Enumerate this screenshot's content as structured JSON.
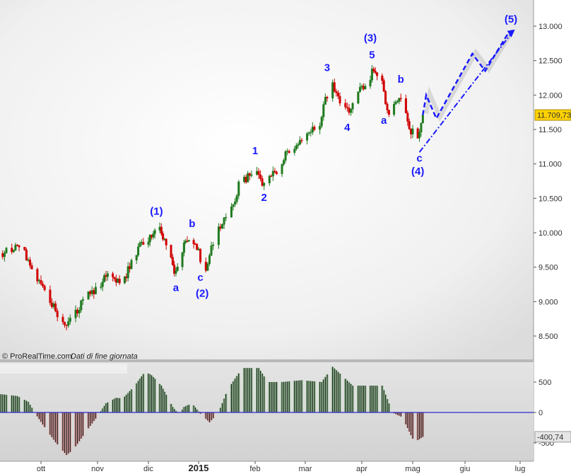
{
  "chart_data": [
    {
      "type": "candlestick",
      "title": "",
      "credit": "© ProRealTime.com",
      "credit_note": "Dati di fine giornata",
      "ylim": [
        8300,
        13300
      ],
      "y_ticks": [
        "13.000",
        "12.500",
        "12.000",
        "11.500",
        "11.000",
        "10.500",
        "10.000",
        "9.500",
        "9.000",
        "8.500"
      ],
      "y_tick_values": [
        13000,
        12500,
        12000,
        11500,
        11000,
        10500,
        10000,
        9500,
        9000,
        8500
      ],
      "last_price_label": "11.709,73",
      "last_price": 11709.73,
      "grid": false,
      "colors": {
        "up": "#1f7a1f",
        "down": "#d00000",
        "wave_labels": "#1a1aff",
        "projection": "#1a1aff",
        "last_price_badge": "#ffd200"
      },
      "close_path": [
        [
          "2014-09-10",
          9700
        ],
        [
          "2014-09-19",
          9830
        ],
        [
          "2014-09-26",
          9520
        ],
        [
          "2014-10-03",
          9160
        ],
        [
          "2014-10-09",
          8850
        ],
        [
          "2014-10-14",
          8600
        ],
        [
          "2014-10-17",
          8750
        ],
        [
          "2014-10-24",
          9000
        ],
        [
          "2014-10-31",
          9200
        ],
        [
          "2014-11-06",
          9360
        ],
        [
          "2014-11-14",
          9260
        ],
        [
          "2014-11-18",
          9410
        ],
        [
          "2014-11-25",
          9770
        ],
        [
          "2014-12-01",
          9930
        ],
        [
          "2014-12-09",
          10030
        ],
        [
          "2014-12-12",
          9830
        ],
        [
          "2014-12-17",
          9410
        ],
        [
          "2014-12-23",
          9830
        ],
        [
          "2014-12-29",
          9880
        ],
        [
          "2015-01-05",
          9460
        ],
        [
          "2015-01-08",
          9830
        ],
        [
          "2015-01-14",
          10130
        ],
        [
          "2015-01-20",
          10390
        ],
        [
          "2015-01-23",
          10700
        ],
        [
          "2015-01-29",
          10850
        ],
        [
          "2015-02-02",
          10900
        ],
        [
          "2015-02-06",
          10670
        ],
        [
          "2015-02-13",
          10900
        ],
        [
          "2015-02-19",
          11160
        ],
        [
          "2015-02-27",
          11360
        ],
        [
          "2015-03-09",
          11570
        ],
        [
          "2015-03-11",
          11840
        ],
        [
          "2015-03-16",
          12150
        ],
        [
          "2015-03-19",
          11950
        ],
        [
          "2015-03-25",
          11740
        ],
        [
          "2015-03-31",
          12050
        ],
        [
          "2015-04-08",
          12360
        ],
        [
          "2015-04-13",
          12150
        ],
        [
          "2015-04-16",
          11740
        ],
        [
          "2015-04-21",
          11900
        ],
        [
          "2015-04-24",
          12000
        ],
        [
          "2015-04-29",
          11530
        ],
        [
          "2015-05-04",
          11330
        ],
        [
          "2015-05-07",
          11709.73
        ]
      ],
      "wave_labels": [
        {
          "text": "(1)",
          "date": "2014-12-06",
          "price": 10260
        },
        {
          "text": "a",
          "date": "2014-12-18",
          "price": 9150
        },
        {
          "text": "b",
          "date": "2014-12-28",
          "price": 10080
        },
        {
          "text": "c",
          "date": "2015-01-02",
          "price": 9300
        },
        {
          "text": "(2)",
          "date": "2015-01-03",
          "price": 9070
        },
        {
          "text": "1",
          "date": "2015-02-01",
          "price": 11140
        },
        {
          "text": "2",
          "date": "2015-02-06",
          "price": 10460
        },
        {
          "text": "3",
          "date": "2015-03-13",
          "price": 12350
        },
        {
          "text": "4",
          "date": "2015-03-24",
          "price": 11480
        },
        {
          "text": "(3)",
          "date": "2015-04-06",
          "price": 12780
        },
        {
          "text": "5",
          "date": "2015-04-07",
          "price": 12530
        },
        {
          "text": "a",
          "date": "2015-04-14",
          "price": 11580
        },
        {
          "text": "b",
          "date": "2015-04-24",
          "price": 12180
        },
        {
          "text": "c",
          "date": "2015-05-05",
          "price": 11030
        },
        {
          "text": "(4)",
          "date": "2015-05-04",
          "price": 10840
        },
        {
          "text": "(5)",
          "date": "2015-06-26",
          "price": 13050
        }
      ],
      "projection_zigzag": [
        [
          "2015-05-07",
          11709.73
        ],
        [
          "2015-05-09",
          12000
        ],
        [
          "2015-05-15",
          11660
        ],
        [
          "2015-06-05",
          12600
        ],
        [
          "2015-06-12",
          12350
        ],
        [
          "2015-06-25",
          12920
        ]
      ],
      "projection_trendline": [
        [
          "2015-05-05",
          11170
        ],
        [
          "2015-06-27",
          12920
        ]
      ]
    },
    {
      "type": "bar",
      "title": "",
      "y_ticks": [
        "500",
        "0",
        "-500"
      ],
      "y_tick_values": [
        500,
        0,
        -500
      ],
      "last_value_label": "-400,74",
      "last_value": -400.74,
      "colors": {
        "positive": "#9cc79c",
        "negative": "#d9a0a0",
        "zero_line": "#2a2ad0"
      },
      "value_path": [
        [
          "2014-09-09",
          300
        ],
        [
          "2014-09-18",
          270
        ],
        [
          "2014-09-24",
          175
        ],
        [
          "2014-09-28",
          -20
        ],
        [
          "2014-10-02",
          -200
        ],
        [
          "2014-10-09",
          -490
        ],
        [
          "2014-10-15",
          -700
        ],
        [
          "2014-10-19",
          -600
        ],
        [
          "2014-10-27",
          -260
        ],
        [
          "2014-11-02",
          -20
        ],
        [
          "2014-11-06",
          150
        ],
        [
          "2014-11-12",
          240
        ],
        [
          "2014-11-16",
          230
        ],
        [
          "2014-11-23",
          440
        ],
        [
          "2014-11-29",
          670
        ],
        [
          "2014-12-03",
          610
        ],
        [
          "2014-12-09",
          440
        ],
        [
          "2014-12-16",
          90
        ],
        [
          "2014-12-20",
          -40
        ],
        [
          "2014-12-23",
          90
        ],
        [
          "2014-12-28",
          150
        ],
        [
          "2015-01-02",
          -20
        ],
        [
          "2015-01-07",
          -160
        ],
        [
          "2015-01-12",
          0
        ],
        [
          "2015-01-17",
          380
        ],
        [
          "2015-01-25",
          730
        ],
        [
          "2015-02-03",
          730
        ],
        [
          "2015-02-08",
          500
        ],
        [
          "2015-02-16",
          500
        ],
        [
          "2015-02-27",
          530
        ],
        [
          "2015-03-10",
          500
        ],
        [
          "2015-03-16",
          750
        ],
        [
          "2015-03-21",
          610
        ],
        [
          "2015-03-27",
          440
        ],
        [
          "2015-04-04",
          440
        ],
        [
          "2015-04-13",
          440
        ],
        [
          "2015-04-19",
          0
        ],
        [
          "2015-04-25",
          -80
        ],
        [
          "2015-05-02",
          -490
        ],
        [
          "2015-05-07",
          -400.74
        ]
      ]
    }
  ],
  "x_axis": {
    "ticks": [
      {
        "label": "ott",
        "date": "2014-10-01"
      },
      {
        "label": "nov",
        "date": "2014-11-01"
      },
      {
        "label": "dic",
        "date": "2014-12-01"
      },
      {
        "label": "2015",
        "date": "2015-01-01",
        "bold": true
      },
      {
        "label": "feb",
        "date": "2015-02-01"
      },
      {
        "label": "mar",
        "date": "2015-03-01"
      },
      {
        "label": "apr",
        "date": "2015-04-01"
      },
      {
        "label": "mag",
        "date": "2015-05-01"
      },
      {
        "label": "giu",
        "date": "2015-06-01"
      },
      {
        "label": "lug",
        "date": "2015-07-01"
      }
    ]
  }
}
